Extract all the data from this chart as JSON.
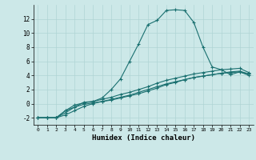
{
  "title": "",
  "xlabel": "Humidex (Indice chaleur)",
  "ylabel": "",
  "background_color": "#cce8e8",
  "grid_color": "#b0d4d4",
  "line_color": "#1a7070",
  "xlim": [
    -0.5,
    23.5
  ],
  "ylim": [
    -3,
    14
  ],
  "yticks": [
    -2,
    0,
    2,
    4,
    6,
    8,
    10,
    12
  ],
  "xticks": [
    0,
    1,
    2,
    3,
    4,
    5,
    6,
    7,
    8,
    9,
    10,
    11,
    12,
    13,
    14,
    15,
    16,
    17,
    18,
    19,
    20,
    21,
    22,
    23
  ],
  "series": [
    {
      "x": [
        0,
        1,
        2,
        3,
        4,
        5,
        6,
        7,
        8,
        9,
        10,
        11,
        12,
        13,
        14,
        15,
        16,
        17,
        18,
        19,
        20,
        21,
        22,
        23
      ],
      "y": [
        -2,
        -2,
        -2,
        -1,
        -0.5,
        0.2,
        0.3,
        0.8,
        2.0,
        3.5,
        6.0,
        8.5,
        11.2,
        11.8,
        13.2,
        13.3,
        13.2,
        11.5,
        8.0,
        5.2,
        4.8,
        4.1,
        4.5,
        4.2
      ]
    },
    {
      "x": [
        0,
        1,
        2,
        3,
        4,
        5,
        6,
        7,
        8,
        9,
        10,
        11,
        12,
        13,
        14,
        15,
        16,
        17,
        18,
        19,
        20,
        21,
        22,
        23
      ],
      "y": [
        -2,
        -2,
        -2,
        -1.3,
        -0.5,
        -0.1,
        0.1,
        0.3,
        0.5,
        0.8,
        1.1,
        1.4,
        1.8,
        2.2,
        2.7,
        3.0,
        3.4,
        3.7,
        3.9,
        4.1,
        4.3,
        4.5,
        4.6,
        4.2
      ]
    },
    {
      "x": [
        0,
        1,
        2,
        3,
        4,
        5,
        6,
        7,
        8,
        9,
        10,
        11,
        12,
        13,
        14,
        15,
        16,
        17,
        18,
        19,
        20,
        21,
        22,
        23
      ],
      "y": [
        -2,
        -2,
        -2,
        -1.0,
        -0.2,
        0.1,
        0.3,
        0.6,
        0.9,
        1.3,
        1.6,
        2.0,
        2.4,
        2.9,
        3.3,
        3.6,
        3.9,
        4.2,
        4.4,
        4.6,
        4.8,
        4.9,
        5.0,
        4.4
      ]
    },
    {
      "x": [
        0,
        1,
        2,
        3,
        4,
        5,
        6,
        7,
        8,
        9,
        10,
        11,
        12,
        13,
        14,
        15,
        16,
        17,
        18,
        19,
        20,
        21,
        22,
        23
      ],
      "y": [
        -2,
        -2,
        -2,
        -1.6,
        -1.0,
        -0.4,
        0.0,
        0.3,
        0.6,
        0.9,
        1.2,
        1.6,
        2.0,
        2.4,
        2.8,
        3.1,
        3.4,
        3.7,
        3.9,
        4.1,
        4.3,
        4.4,
        4.5,
        4.0
      ]
    }
  ]
}
